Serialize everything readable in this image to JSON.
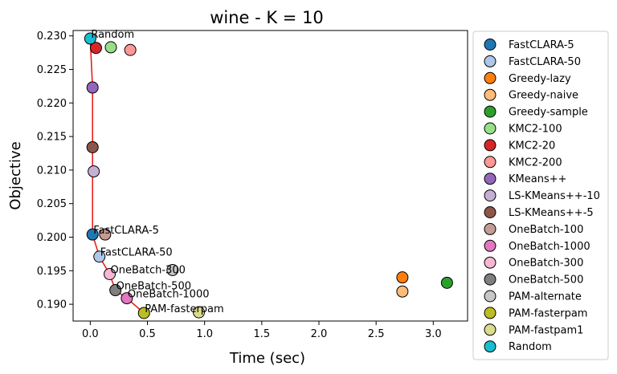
{
  "chart_data": {
    "type": "scatter",
    "title": "wine - K = 10",
    "xlabel": "Time (sec)",
    "ylabel": "Objective",
    "xlim": [
      -0.15,
      3.3
    ],
    "ylim": [
      0.1875,
      0.2308
    ],
    "xticks": [
      0.0,
      0.5,
      1.0,
      1.5,
      2.0,
      2.5,
      3.0
    ],
    "xtick_labels": [
      "0.0",
      "0.5",
      "1.0",
      "1.5",
      "2.0",
      "2.5",
      "3.0"
    ],
    "yticks": [
      0.19,
      0.195,
      0.2,
      0.205,
      0.21,
      0.215,
      0.22,
      0.225,
      0.23
    ],
    "ytick_labels": [
      "0.190",
      "0.195",
      "0.200",
      "0.205",
      "0.210",
      "0.215",
      "0.220",
      "0.225",
      "0.230"
    ],
    "grid": false,
    "legend_position": "outside-right",
    "series": [
      {
        "name": "FastCLARA-5",
        "color": "#1f77b4",
        "x": 0.02,
        "y": 0.2004
      },
      {
        "name": "FastCLARA-50",
        "color": "#aec7e8",
        "x": 0.08,
        "y": 0.1971
      },
      {
        "name": "Greedy-lazy",
        "color": "#ff7f0e",
        "x": 2.73,
        "y": 0.194
      },
      {
        "name": "Greedy-naive",
        "color": "#ffbb78",
        "x": 2.73,
        "y": 0.1919
      },
      {
        "name": "Greedy-sample",
        "color": "#2ca02c",
        "x": 3.12,
        "y": 0.1932
      },
      {
        "name": "KMC2-100",
        "color": "#98df8a",
        "x": 0.18,
        "y": 0.2283
      },
      {
        "name": "KMC2-20",
        "color": "#d62728",
        "x": 0.05,
        "y": 0.2282
      },
      {
        "name": "KMC2-200",
        "color": "#ff9896",
        "x": 0.35,
        "y": 0.2279
      },
      {
        "name": "KMeans++",
        "color": "#9467bd",
        "x": 0.02,
        "y": 0.2223
      },
      {
        "name": "LS-KMeans++-10",
        "color": "#c5b0d5",
        "x": 0.03,
        "y": 0.2098
      },
      {
        "name": "LS-KMeans++-5",
        "color": "#8c564b",
        "x": 0.02,
        "y": 0.2134
      },
      {
        "name": "OneBatch-100",
        "color": "#c49c94",
        "x": 0.13,
        "y": 0.2004
      },
      {
        "name": "OneBatch-1000",
        "color": "#e377c2",
        "x": 0.32,
        "y": 0.1909
      },
      {
        "name": "OneBatch-300",
        "color": "#f7b6d2",
        "x": 0.17,
        "y": 0.1945
      },
      {
        "name": "OneBatch-500",
        "color": "#7f7f7f",
        "x": 0.22,
        "y": 0.1921
      },
      {
        "name": "PAM-alternate",
        "color": "#c7c7c7",
        "x": 0.72,
        "y": 0.1951
      },
      {
        "name": "PAM-fasterpam",
        "color": "#bcbd22",
        "x": 0.47,
        "y": 0.1887
      },
      {
        "name": "PAM-fastpam1",
        "color": "#dbdb8d",
        "x": 0.95,
        "y": 0.1888
      },
      {
        "name": "Random",
        "color": "#17becf",
        "x": 0.0,
        "y": 0.2296
      }
    ],
    "pareto_front": {
      "color": "#e8211b",
      "points": [
        [
          0.0,
          0.2296
        ],
        [
          0.02,
          0.2223
        ],
        [
          0.02,
          0.2134
        ],
        [
          0.02,
          0.2004
        ],
        [
          0.08,
          0.1971
        ],
        [
          0.17,
          0.1945
        ],
        [
          0.22,
          0.1921
        ],
        [
          0.32,
          0.1909
        ],
        [
          0.47,
          0.1887
        ]
      ]
    },
    "annotations": [
      {
        "text": "Random",
        "x": 0.0,
        "y": 0.2296
      },
      {
        "text": "FastCLARA-5",
        "x": 0.02,
        "y": 0.2004
      },
      {
        "text": "FastCLARA-50",
        "x": 0.08,
        "y": 0.1971
      },
      {
        "text": "OneBatch-300",
        "x": 0.17,
        "y": 0.1945
      },
      {
        "text": "OneBatch-500",
        "x": 0.22,
        "y": 0.1921
      },
      {
        "text": "OneBatch-1000",
        "x": 0.32,
        "y": 0.1909
      },
      {
        "text": "PAM-fasterpam",
        "x": 0.47,
        "y": 0.1887
      }
    ]
  }
}
